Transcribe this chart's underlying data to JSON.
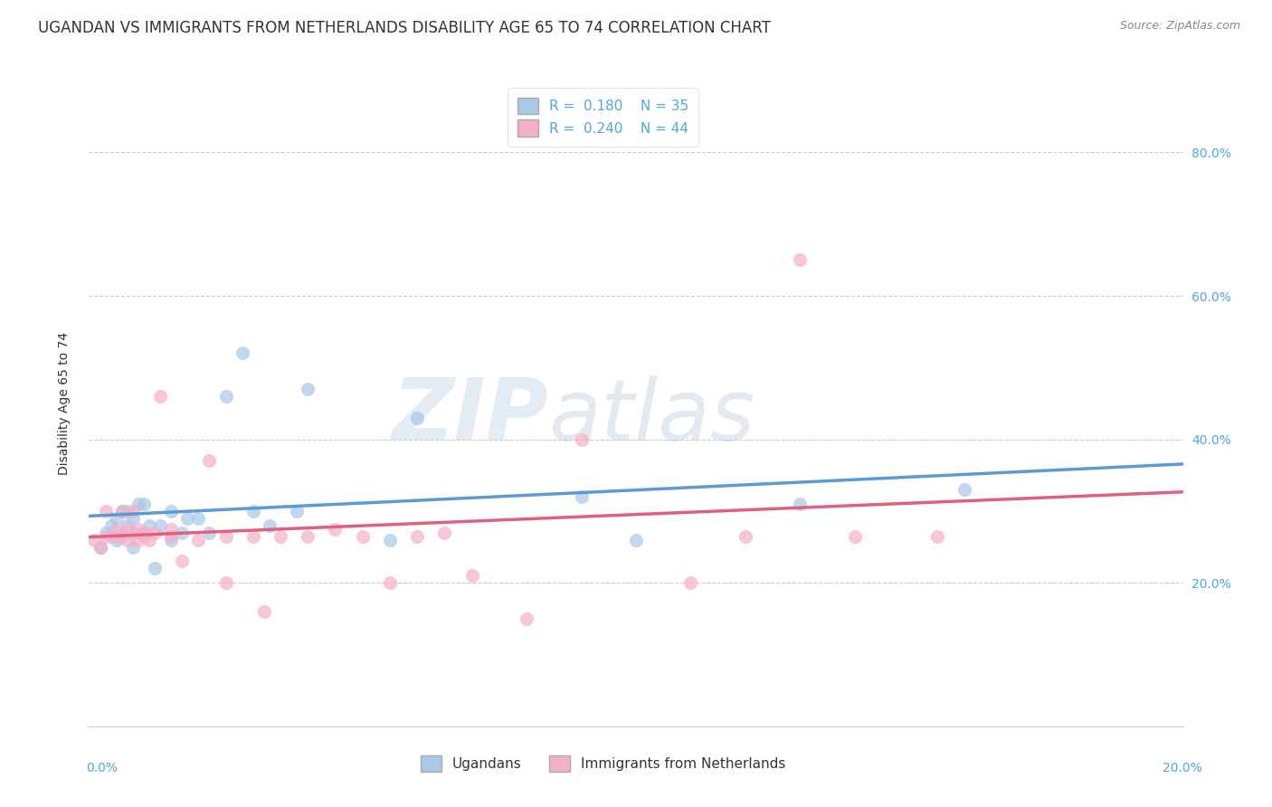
{
  "title": "UGANDAN VS IMMIGRANTS FROM NETHERLANDS DISABILITY AGE 65 TO 74 CORRELATION CHART",
  "source": "Source: ZipAtlas.com",
  "xlabel_bottom_left": "0.0%",
  "xlabel_bottom_right": "20.0%",
  "ylabel": "Disability Age 65 to 74",
  "xlim": [
    0.0,
    0.2
  ],
  "ylim": [
    0.0,
    0.9
  ],
  "yticks": [
    0.2,
    0.4,
    0.6,
    0.8
  ],
  "ytick_labels": [
    "20.0%",
    "40.0%",
    "60.0%",
    "80.0%"
  ],
  "ugandan_color": "#a8c8e8",
  "immigrant_color": "#f4b0c8",
  "ugandan_line_color": "#5b9bd5",
  "immigrant_line_color": "#e06080",
  "legend_R_ugandan": "R =  0.180",
  "legend_N_ugandan": "N = 35",
  "legend_R_immigrant": "R =  0.240",
  "legend_N_immigrant": "N = 44",
  "watermark_zip": "ZIP",
  "watermark_atlas": "atlas",
  "ugandan_x": [
    0.002,
    0.003,
    0.004,
    0.005,
    0.005,
    0.006,
    0.006,
    0.007,
    0.007,
    0.008,
    0.008,
    0.009,
    0.01,
    0.01,
    0.011,
    0.012,
    0.013,
    0.015,
    0.015,
    0.017,
    0.018,
    0.02,
    0.022,
    0.025,
    0.028,
    0.03,
    0.033,
    0.038,
    0.04,
    0.055,
    0.06,
    0.09,
    0.1,
    0.13,
    0.16
  ],
  "ugandan_y": [
    0.25,
    0.27,
    0.28,
    0.26,
    0.29,
    0.3,
    0.27,
    0.3,
    0.28,
    0.29,
    0.25,
    0.31,
    0.27,
    0.31,
    0.28,
    0.22,
    0.28,
    0.3,
    0.26,
    0.27,
    0.29,
    0.29,
    0.27,
    0.46,
    0.52,
    0.3,
    0.28,
    0.3,
    0.47,
    0.26,
    0.43,
    0.32,
    0.26,
    0.31,
    0.33
  ],
  "immigrant_x": [
    0.001,
    0.002,
    0.003,
    0.003,
    0.004,
    0.005,
    0.005,
    0.006,
    0.006,
    0.007,
    0.007,
    0.008,
    0.008,
    0.009,
    0.009,
    0.01,
    0.01,
    0.011,
    0.012,
    0.013,
    0.015,
    0.015,
    0.017,
    0.02,
    0.022,
    0.025,
    0.025,
    0.03,
    0.032,
    0.035,
    0.04,
    0.045,
    0.05,
    0.055,
    0.06,
    0.065,
    0.07,
    0.08,
    0.09,
    0.11,
    0.12,
    0.13,
    0.14,
    0.155
  ],
  "immigrant_y": [
    0.26,
    0.25,
    0.265,
    0.3,
    0.265,
    0.265,
    0.275,
    0.3,
    0.265,
    0.26,
    0.275,
    0.3,
    0.27,
    0.26,
    0.275,
    0.265,
    0.27,
    0.26,
    0.27,
    0.46,
    0.265,
    0.275,
    0.23,
    0.26,
    0.37,
    0.265,
    0.2,
    0.265,
    0.16,
    0.265,
    0.265,
    0.275,
    0.265,
    0.2,
    0.265,
    0.27,
    0.21,
    0.15,
    0.4,
    0.2,
    0.265,
    0.65,
    0.265,
    0.265
  ],
  "background_color": "#ffffff",
  "grid_color": "#cccccc",
  "title_color": "#333333",
  "axis_label_color": "#4da6e8",
  "font_size_title": 12,
  "font_size_axis": 10,
  "font_size_legend": 11
}
